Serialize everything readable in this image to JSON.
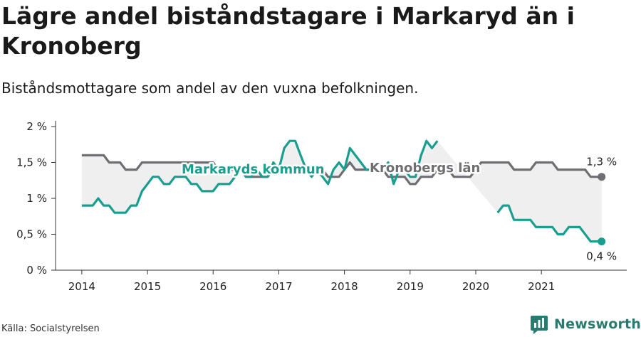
{
  "title": "Lägre andel biståndstagare i Markaryd än i Kronoberg",
  "subtitle": "Biståndsmottagare som andel av den vuxna befolkningen.",
  "source": "Källa: Socialstyrelsen",
  "brand": "Newsworthy",
  "colors": {
    "series1": "#1a9e8f",
    "series2": "#6e6e73",
    "band": "#ececec",
    "axis": "#333333"
  },
  "chart_data": {
    "type": "line",
    "y_ticks": [
      "0 %",
      "0,5 %",
      "1 %",
      "1,5 %",
      "2 %"
    ],
    "y_tick_values": [
      0,
      0.5,
      1,
      1.5,
      2
    ],
    "x_ticks": [
      "2014",
      "2015",
      "2016",
      "2017",
      "2018",
      "2019",
      "2020",
      "2021"
    ],
    "x_tick_values": [
      2014,
      2015,
      2016,
      2017,
      2018,
      2019,
      2020,
      2021
    ],
    "xlim": [
      2013.6,
      2022.3
    ],
    "ylim": [
      0,
      2
    ],
    "grid": false,
    "series": [
      {
        "name": "Markaryds kommun",
        "key": "s1",
        "end_label": "0,4 %",
        "x": [
          2014.0,
          2014.083,
          2014.167,
          2014.25,
          2014.333,
          2014.417,
          2014.5,
          2014.583,
          2014.667,
          2014.75,
          2014.833,
          2014.917,
          2015.0,
          2015.083,
          2015.167,
          2015.25,
          2015.333,
          2015.417,
          2015.5,
          2015.583,
          2015.667,
          2015.75,
          2015.833,
          2015.917,
          2016.0,
          2016.083,
          2016.167,
          2016.25,
          2016.333,
          2016.417,
          2016.5,
          2016.583,
          2016.667,
          2016.75,
          2016.833,
          2016.917,
          2017.0,
          2017.083,
          2017.167,
          2017.25,
          2017.333,
          2017.417,
          2017.5,
          2017.583,
          2017.667,
          2017.75,
          2017.833,
          2017.917,
          2018.0,
          2018.083,
          2018.167,
          2018.25,
          2018.333,
          2018.417,
          2018.5,
          2018.583,
          2018.667,
          2018.75,
          2018.833,
          2018.917,
          2019.0,
          2019.083,
          2019.167,
          2019.25,
          2019.333,
          2019.417,
          2019.5,
          2019.583,
          2019.667,
          2019.75,
          2019.833,
          2019.917,
          2020.0,
          2020.083,
          2020.167,
          2020.25,
          2020.333,
          2020.417,
          2020.5,
          2020.583,
          2020.667,
          2020.75,
          2020.833,
          2020.917,
          2021.0,
          2021.083,
          2021.167,
          2021.25,
          2021.333,
          2021.417,
          2021.5,
          2021.583,
          2021.667,
          2021.75,
          2021.833,
          2021.917
        ],
        "values": [
          0.9,
          0.9,
          0.9,
          1.0,
          0.9,
          0.9,
          0.8,
          0.8,
          0.8,
          0.9,
          0.9,
          1.1,
          1.2,
          1.3,
          1.3,
          1.2,
          1.2,
          1.3,
          1.3,
          1.3,
          1.2,
          1.2,
          1.1,
          1.1,
          1.1,
          1.2,
          1.2,
          1.2,
          1.3,
          1.4,
          1.3,
          1.3,
          1.4,
          1.3,
          1.3,
          1.5,
          1.4,
          1.7,
          1.8,
          1.8,
          1.6,
          1.4,
          1.3,
          1.4,
          1.3,
          1.2,
          1.4,
          1.5,
          1.4,
          1.7,
          1.6,
          1.5,
          1.4,
          1.4,
          1.4,
          1.4,
          1.5,
          1.2,
          1.4,
          1.4,
          1.3,
          1.3,
          1.6,
          1.8,
          1.7,
          1.8,
          null,
          null,
          null,
          null,
          null,
          null,
          null,
          null,
          null,
          null,
          0.8,
          0.9,
          0.9,
          0.7,
          0.7,
          0.7,
          0.7,
          0.6,
          0.6,
          0.6,
          0.6,
          0.5,
          0.5,
          0.6,
          0.6,
          0.6,
          0.5,
          0.4,
          0.4,
          0.4
        ]
      },
      {
        "name": "Kronobergs län",
        "key": "s2",
        "end_label": "1,3 %",
        "x": [
          2014.0,
          2014.083,
          2014.167,
          2014.25,
          2014.333,
          2014.417,
          2014.5,
          2014.583,
          2014.667,
          2014.75,
          2014.833,
          2014.917,
          2015.0,
          2015.083,
          2015.167,
          2015.25,
          2015.333,
          2015.417,
          2015.5,
          2015.583,
          2015.667,
          2015.75,
          2015.833,
          2015.917,
          2016.0,
          2016.083,
          2016.167,
          2016.25,
          2016.333,
          2016.417,
          2016.5,
          2016.583,
          2016.667,
          2016.75,
          2016.833,
          2016.917,
          2017.0,
          2017.083,
          2017.167,
          2017.25,
          2017.333,
          2017.417,
          2017.5,
          2017.583,
          2017.667,
          2017.75,
          2017.833,
          2017.917,
          2018.0,
          2018.083,
          2018.167,
          2018.25,
          2018.333,
          2018.417,
          2018.5,
          2018.583,
          2018.667,
          2018.75,
          2018.833,
          2018.917,
          2019.0,
          2019.083,
          2019.167,
          2019.25,
          2019.333,
          2019.417,
          2019.5,
          2019.583,
          2019.667,
          2019.75,
          2019.833,
          2019.917,
          2020.0,
          2020.083,
          2020.167,
          2020.25,
          2020.333,
          2020.417,
          2020.5,
          2020.583,
          2020.667,
          2020.75,
          2020.833,
          2020.917,
          2021.0,
          2021.083,
          2021.167,
          2021.25,
          2021.333,
          2021.417,
          2021.5,
          2021.583,
          2021.667,
          2021.75,
          2021.833,
          2021.917
        ],
        "values": [
          1.6,
          1.6,
          1.6,
          1.6,
          1.6,
          1.5,
          1.5,
          1.5,
          1.4,
          1.4,
          1.4,
          1.5,
          1.5,
          1.5,
          1.5,
          1.5,
          1.5,
          1.5,
          1.5,
          1.5,
          1.5,
          1.5,
          1.5,
          1.5,
          1.5,
          1.4,
          1.4,
          1.4,
          1.4,
          1.4,
          1.3,
          1.3,
          1.3,
          1.3,
          1.3,
          1.4,
          1.4,
          1.4,
          1.4,
          1.4,
          1.4,
          1.4,
          1.4,
          1.4,
          1.4,
          1.3,
          1.3,
          1.3,
          1.4,
          1.5,
          1.4,
          1.4,
          1.4,
          1.4,
          1.4,
          1.4,
          1.3,
          1.3,
          1.3,
          1.3,
          1.2,
          1.2,
          1.3,
          1.3,
          1.3,
          1.4,
          1.4,
          1.4,
          1.3,
          1.3,
          1.3,
          1.3,
          1.4,
          1.5,
          1.5,
          1.5,
          1.5,
          1.5,
          1.5,
          1.4,
          1.4,
          1.4,
          1.4,
          1.5,
          1.5,
          1.5,
          1.5,
          1.4,
          1.4,
          1.4,
          1.4,
          1.4,
          1.4,
          1.3,
          1.3,
          1.3
        ]
      }
    ]
  }
}
